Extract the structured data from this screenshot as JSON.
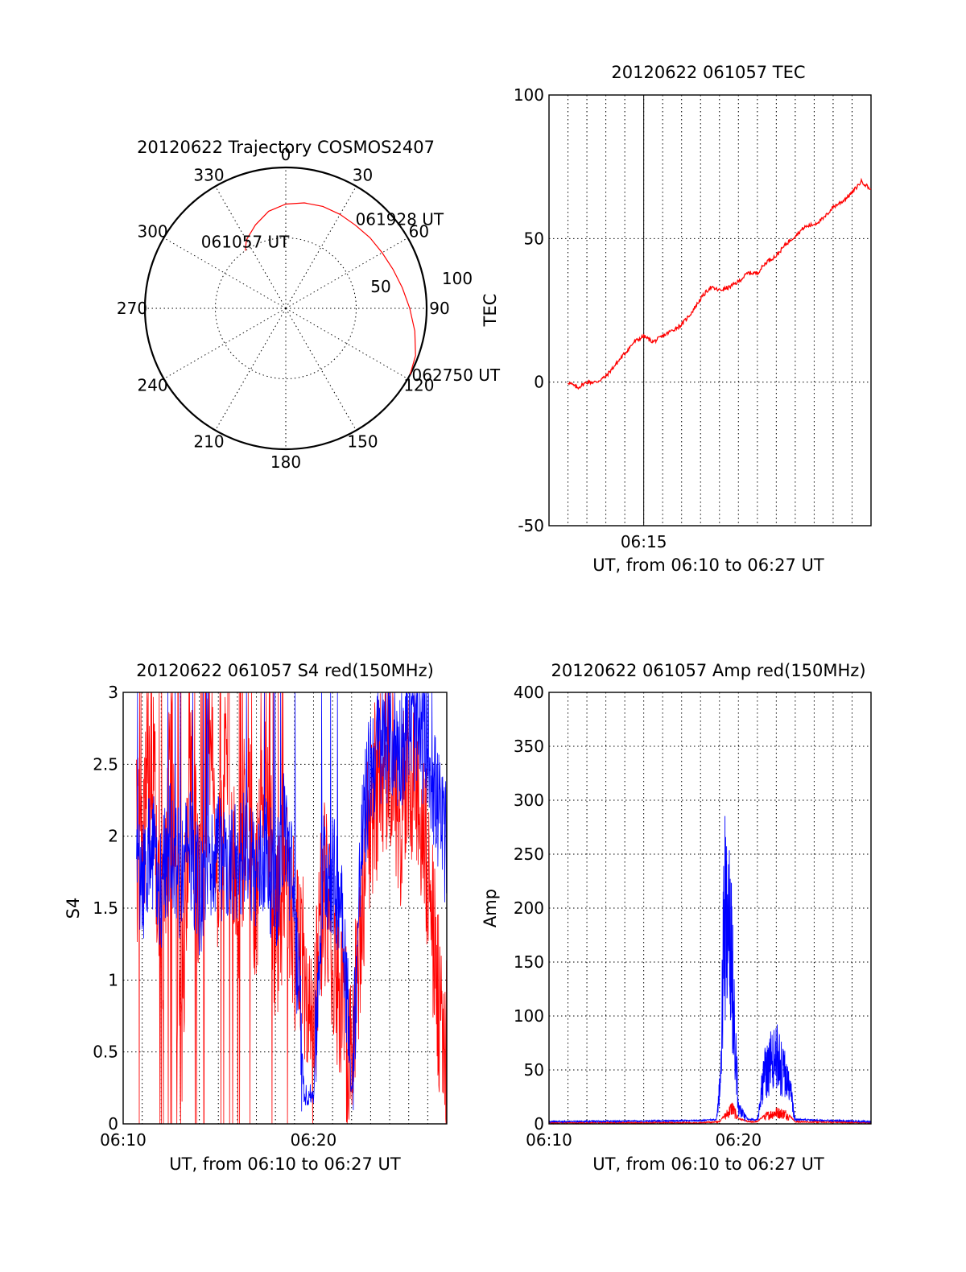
{
  "chart_data": [
    {
      "type": "polar",
      "title": "20120622 Trajectory COSMOS2407",
      "angle_labels": [
        "0",
        "30",
        "60",
        "90",
        "120",
        "150",
        "180",
        "210",
        "240",
        "270",
        "300",
        "330"
      ],
      "radial_labels": [
        "50",
        "100"
      ],
      "trajectory": {
        "color": "#ff0000",
        "points": [
          [
            325,
            50
          ],
          [
            330,
            56
          ],
          [
            340,
            63
          ],
          [
            350,
            70
          ],
          [
            0,
            74
          ],
          [
            10,
            76
          ],
          [
            20,
            77
          ],
          [
            30,
            77
          ],
          [
            40,
            77
          ],
          [
            50,
            78
          ],
          [
            60,
            79
          ],
          [
            70,
            81
          ],
          [
            80,
            84
          ],
          [
            90,
            88
          ],
          [
            100,
            93
          ],
          [
            110,
            98
          ],
          [
            118,
            100
          ]
        ]
      },
      "annotations": [
        {
          "text": "061057 UT",
          "az": 325,
          "zenith": 50
        },
        {
          "text": "061928 UT",
          "az": 50,
          "zenith": 78
        },
        {
          "text": "062750 UT",
          "az": 118,
          "zenith": 100
        }
      ]
    },
    {
      "type": "line",
      "title": "20120622 061057 TEC",
      "xlabel": "UT, from 06:10 to 06:27 UT",
      "ylabel": "TEC",
      "xlim": [
        "06:10",
        "06:27"
      ],
      "ylim": [
        -50,
        100
      ],
      "yticks": [
        "100",
        "50",
        "0",
        "-50"
      ],
      "xticks": [
        {
          "t": "06:15",
          "label": "06:15"
        }
      ],
      "series": [
        {
          "color": "#ff0000",
          "x": [
            "06:11:00",
            "06:11:30",
            "06:12:00",
            "06:12:30",
            "06:13:00",
            "06:13:30",
            "06:14:00",
            "06:14:30",
            "06:15:00",
            "06:15:30",
            "06:16:00",
            "06:16:30",
            "06:17:00",
            "06:17:30",
            "06:18:00",
            "06:18:30",
            "06:19:00",
            "06:19:30",
            "06:20:00",
            "06:20:30",
            "06:21:00",
            "06:21:30",
            "06:22:00",
            "06:22:30",
            "06:23:00",
            "06:23:30",
            "06:24:00",
            "06:24:30",
            "06:25:00",
            "06:25:30",
            "06:26:00",
            "06:26:30",
            "06:27:00"
          ],
          "values": [
            0,
            -2,
            0,
            0,
            2,
            6,
            10,
            14,
            16,
            14,
            16,
            18,
            20,
            24,
            29,
            33,
            32,
            33,
            35,
            38,
            38,
            42,
            44,
            48,
            51,
            54,
            55,
            57,
            61,
            63,
            66,
            70,
            67
          ]
        }
      ]
    },
    {
      "type": "line",
      "title": "20120622 061057 S4 red(150MHz)",
      "xlabel": "UT, from 06:10 to 06:27 UT",
      "ylabel": "S4",
      "xlim": [
        "06:10",
        "06:27"
      ],
      "ylim": [
        0,
        3
      ],
      "yticks": [
        "3",
        "2.5",
        "2",
        "1.5",
        "1",
        "0.5",
        "0"
      ],
      "xticks": [
        {
          "t": "06:10",
          "label": "06:10"
        },
        {
          "t": "06:20",
          "label": "06:20"
        }
      ],
      "series": [
        {
          "color": "#ff0000",
          "x": [
            "06:11:00",
            "06:11:30",
            "06:12:00",
            "06:12:30",
            "06:13:00",
            "06:13:30",
            "06:14:00",
            "06:14:30",
            "06:15:00",
            "06:15:30",
            "06:16:00",
            "06:16:30",
            "06:17:00",
            "06:17:30",
            "06:18:00",
            "06:18:30",
            "06:19:00",
            "06:19:30",
            "06:20:00",
            "06:20:30",
            "06:21:00",
            "06:21:30",
            "06:22:00",
            "06:22:30",
            "06:23:00",
            "06:23:30",
            "06:24:00",
            "06:24:30",
            "06:25:00",
            "06:25:30",
            "06:26:00",
            "06:26:30",
            "06:27:00"
          ],
          "values": [
            1.9,
            2.6,
            1.2,
            2.8,
            0.4,
            2.5,
            1.4,
            2.9,
            1.6,
            2.7,
            1.3,
            2.4,
            1.5,
            2.6,
            1.2,
            1.8,
            1.3,
            1.1,
            0.5,
            1.7,
            1.2,
            0.9,
            0.3,
            1.5,
            2.2,
            2.4,
            2.6,
            2.1,
            2.5,
            2.3,
            1.8,
            0.9,
            0.5
          ]
        },
        {
          "color": "#0000ff",
          "x": [
            "06:11:00",
            "06:11:30",
            "06:12:00",
            "06:12:30",
            "06:13:00",
            "06:13:30",
            "06:14:00",
            "06:14:30",
            "06:15:00",
            "06:15:30",
            "06:16:00",
            "06:16:30",
            "06:17:00",
            "06:17:30",
            "06:18:00",
            "06:18:30",
            "06:19:00",
            "06:19:30",
            "06:20:00",
            "06:20:30",
            "06:21:00",
            "06:21:30",
            "06:22:00",
            "06:22:30",
            "06:23:00",
            "06:23:30",
            "06:24:00",
            "06:24:30",
            "06:25:00",
            "06:25:30",
            "06:26:00",
            "06:26:30",
            "06:27:00"
          ],
          "values": [
            1.7,
            1.9,
            1.6,
            2.0,
            1.7,
            1.9,
            1.6,
            1.8,
            1.9,
            1.7,
            1.8,
            2.0,
            1.7,
            1.9,
            1.6,
            2.1,
            1.5,
            0.2,
            0.2,
            1.8,
            1.7,
            1.6,
            0.2,
            1.9,
            2.5,
            2.6,
            2.7,
            2.6,
            2.8,
            2.7,
            2.6,
            2.2,
            1.9
          ]
        }
      ]
    },
    {
      "type": "line",
      "title": "20120622 061057 Amp red(150MHz)",
      "xlabel": "UT, from 06:10 to 06:27 UT",
      "ylabel": "Amp",
      "xlim": [
        "06:10",
        "06:27"
      ],
      "ylim": [
        0,
        400
      ],
      "yticks": [
        "400",
        "350",
        "300",
        "250",
        "200",
        "150",
        "100",
        "50",
        "0"
      ],
      "xticks": [
        {
          "t": "06:10",
          "label": "06:10"
        },
        {
          "t": "06:20",
          "label": "06:20"
        }
      ],
      "series": [
        {
          "color": "#ff0000",
          "x": [
            "06:10:00",
            "06:18:00",
            "06:19:00",
            "06:19:20",
            "06:19:40",
            "06:20:00",
            "06:20:30",
            "06:21:00",
            "06:21:30",
            "06:22:00",
            "06:22:30",
            "06:23:00",
            "06:27:00"
          ],
          "values": [
            1,
            1,
            2,
            10,
            20,
            5,
            2,
            2,
            10,
            14,
            12,
            2,
            1
          ]
        },
        {
          "color": "#0000ff",
          "x": [
            "06:10:00",
            "06:18:00",
            "06:18:50",
            "06:19:05",
            "06:19:15",
            "06:19:25",
            "06:19:35",
            "06:19:45",
            "06:20:00",
            "06:20:30",
            "06:21:00",
            "06:21:20",
            "06:21:40",
            "06:22:00",
            "06:22:20",
            "06:22:40",
            "06:23:00",
            "06:27:00"
          ],
          "values": [
            2,
            3,
            4,
            60,
            272,
            210,
            230,
            150,
            20,
            4,
            4,
            60,
            75,
            85,
            65,
            50,
            4,
            2
          ]
        }
      ]
    }
  ]
}
